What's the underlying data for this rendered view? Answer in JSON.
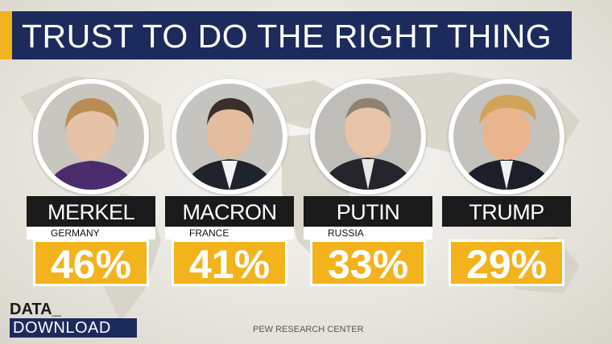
{
  "title": "TRUST TO DO THE RIGHT THING",
  "leaders": [
    {
      "name": "MERKEL",
      "country": "GERMANY",
      "value": "46%",
      "hair": "#b98c52",
      "jacket": "#4b2d6e"
    },
    {
      "name": "MACRON",
      "country": "FRANCE",
      "value": "41%",
      "hair": "#3a2f28",
      "jacket": "#1f232b"
    },
    {
      "name": "PUTIN",
      "country": "RUSSIA",
      "value": "33%",
      "hair": "#8e8273",
      "jacket": "#25262b"
    },
    {
      "name": "TRUMP",
      "country": "",
      "value": "29%",
      "hair": "#d2a35a",
      "jacket": "#1c1f2a"
    }
  ],
  "logo": {
    "line1": "DATA_",
    "line2": "DOWNLOAD"
  },
  "source": "PEW RESEARCH CENTER",
  "colors": {
    "accent": "#f3b31c",
    "navy": "#1c2a5c",
    "name_bar": "#1a1a1a"
  }
}
